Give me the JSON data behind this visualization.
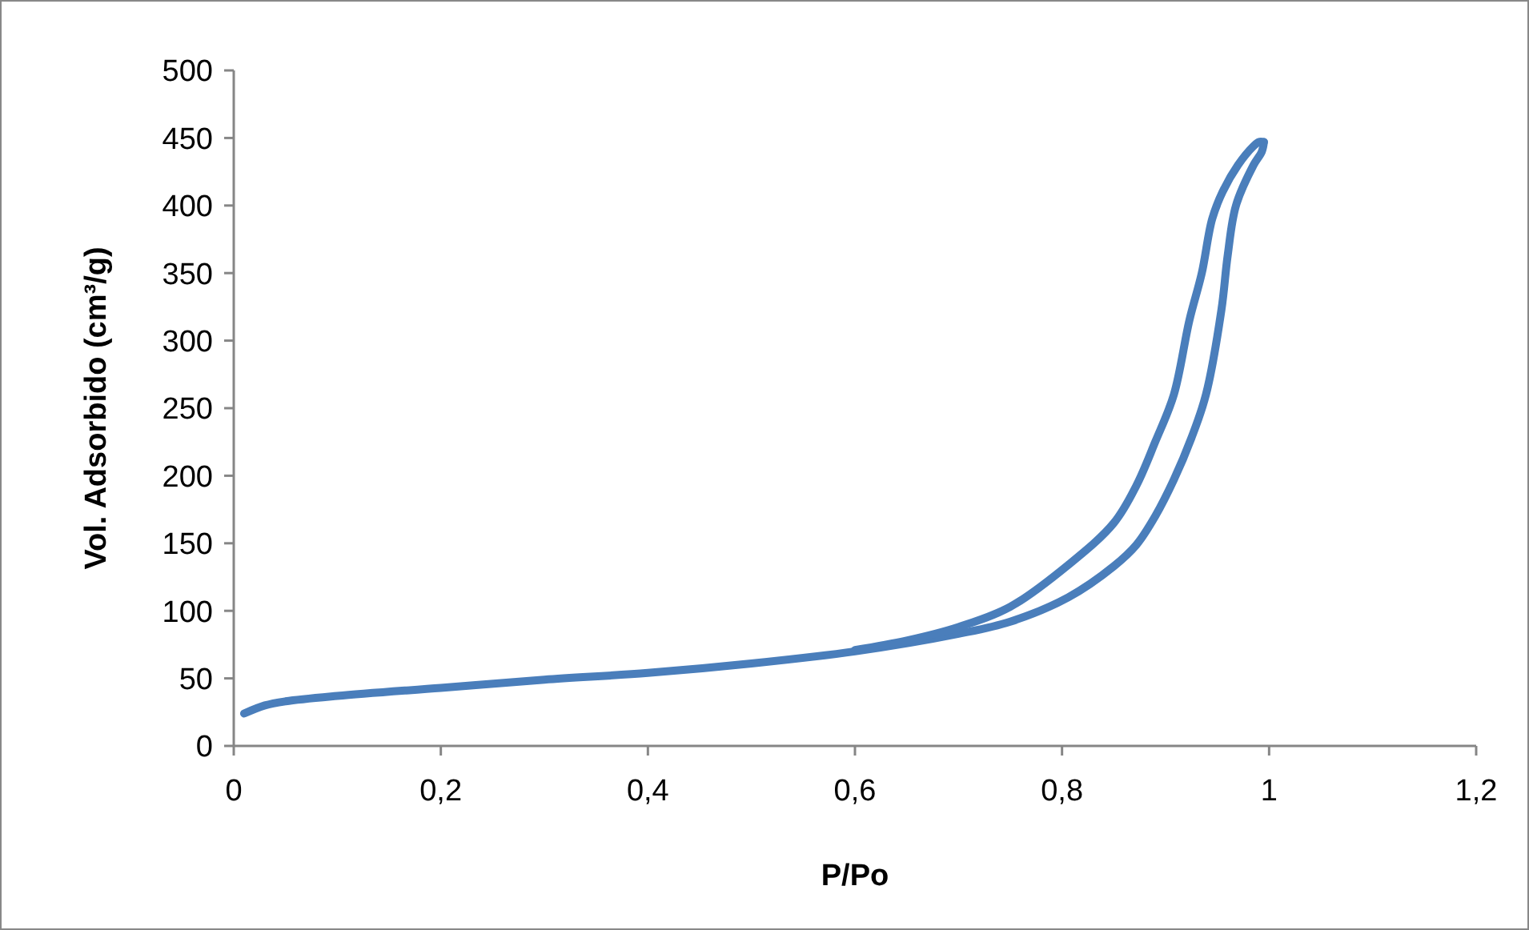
{
  "chart_data": {
    "type": "line",
    "xlabel": "P/Po",
    "ylabel": "Vol. Adsorbido (cm³/g)",
    "xlim": [
      0,
      1.2
    ],
    "ylim": [
      0,
      500
    ],
    "xticks": [
      0,
      {
        "value": 0.2,
        "label": "0,2"
      },
      {
        "value": 0.4,
        "label": "0,4"
      },
      {
        "value": 0.6,
        "label": "0,6"
      },
      {
        "value": 0.8,
        "label": "0,8"
      },
      1,
      {
        "value": 1.2,
        "label": "1,2"
      }
    ],
    "yticks": [
      0,
      50,
      100,
      150,
      200,
      250,
      300,
      350,
      400,
      450,
      500
    ],
    "grid": false,
    "marker": "none",
    "line_style": "solid",
    "series": [
      {
        "color": "#4a7ebb",
        "x": [
          0.01,
          0.03,
          0.05,
          0.1,
          0.2,
          0.3,
          0.4,
          0.5,
          0.6,
          0.7,
          0.75,
          0.806,
          0.85,
          0.872,
          0.89,
          0.908,
          0.925,
          0.939,
          0.954,
          0.96,
          0.968,
          0.985,
          0.993,
          0.995
        ],
        "values": [
          24,
          30,
          33,
          37,
          43,
          49,
          54,
          61,
          70,
          83,
          92,
          110,
          133,
          149,
          170,
          197,
          228,
          260,
          323,
          363,
          400,
          430,
          440,
          447
        ]
      },
      {
        "color": "#4a7ebb",
        "x": [
          0.995,
          0.99,
          0.985,
          0.97,
          0.955,
          0.945,
          0.935,
          0.923,
          0.908,
          0.89,
          0.872,
          0.85,
          0.806,
          0.75,
          0.7,
          0.65,
          0.6
        ],
        "values": [
          447,
          447,
          444,
          430,
          410,
          390,
          350,
          315,
          260,
          225,
          193,
          165,
          134,
          103,
          88,
          78,
          71
        ]
      }
    ]
  }
}
